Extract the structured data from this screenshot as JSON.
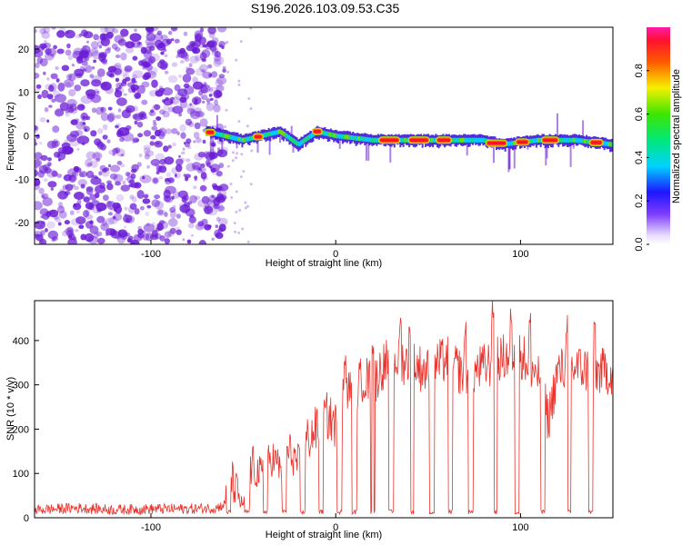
{
  "title": "S196.2026.103.09.53.C35",
  "colors": {
    "snr_line": "#e8322b",
    "scatter": "#6a1bd6",
    "axis": "#000000"
  },
  "chart_data": [
    {
      "type": "heatmap",
      "xlabel": "Height of straight line (km)",
      "ylabel": "Frequency (Hz)",
      "xlim": [
        -163,
        150
      ],
      "ylim": [
        -25,
        25
      ],
      "xticks": [
        -100,
        0,
        100
      ],
      "yticks": [
        -20,
        -10,
        0,
        10,
        20
      ],
      "colorbar": {
        "label": "Normalized spectral amplitude",
        "range": [
          0,
          1
        ],
        "ticks": [
          0.0,
          0.2,
          0.4,
          0.6,
          0.8
        ]
      },
      "noise_region_x": [
        -163,
        -60
      ],
      "signal_band_center_hz": [
        {
          "x": -70,
          "y": 1
        },
        {
          "x": -60,
          "y": 0
        },
        {
          "x": -50,
          "y": -1
        },
        {
          "x": -40,
          "y": 0
        },
        {
          "x": -30,
          "y": 1
        },
        {
          "x": -20,
          "y": -2
        },
        {
          "x": -10,
          "y": 1
        },
        {
          "x": 0,
          "y": 0
        },
        {
          "x": 20,
          "y": -1
        },
        {
          "x": 40,
          "y": -1
        },
        {
          "x": 60,
          "y": -1
        },
        {
          "x": 80,
          "y": -1
        },
        {
          "x": 90,
          "y": -2
        },
        {
          "x": 110,
          "y": -1
        },
        {
          "x": 130,
          "y": -1
        },
        {
          "x": 150,
          "y": -2
        }
      ],
      "high_amplitude_segments_x": [
        [
          -70,
          -66
        ],
        [
          -44,
          -40
        ],
        [
          -12,
          -8
        ],
        [
          24,
          34
        ],
        [
          40,
          50
        ],
        [
          55,
          62
        ],
        [
          82,
          92
        ],
        [
          98,
          104
        ],
        [
          112,
          120
        ],
        [
          138,
          144
        ]
      ]
    },
    {
      "type": "line",
      "xlabel": "Height of straight line (km)",
      "ylabel": "SNR (10 * v/v)",
      "xlim": [
        -163,
        150
      ],
      "ylim": [
        0,
        490
      ],
      "xticks": [
        -100,
        0,
        100
      ],
      "yticks": [
        0,
        100,
        200,
        300,
        400
      ],
      "series": [
        {
          "name": "SNR",
          "x": [
            -163,
            -140,
            -120,
            -100,
            -80,
            -65,
            -60,
            -57,
            -55,
            -50,
            -45,
            -40,
            -35,
            -30,
            -25,
            -20,
            -15,
            -10,
            -5,
            0,
            5,
            10,
            15,
            20,
            25,
            30,
            40,
            50,
            60,
            70,
            80,
            90,
            100,
            110,
            115,
            120,
            130,
            140,
            150
          ],
          "y": [
            18,
            22,
            18,
            20,
            20,
            22,
            30,
            100,
            70,
            30,
            120,
            90,
            140,
            110,
            150,
            120,
            180,
            200,
            230,
            210,
            290,
            280,
            320,
            300,
            340,
            360,
            350,
            330,
            360,
            320,
            340,
            360,
            370,
            320,
            220,
            330,
            340,
            330,
            330
          ]
        }
      ],
      "dropouts_x": [
        -58,
        -48,
        -38,
        -28,
        -18,
        -8,
        2,
        10,
        20,
        30,
        41,
        52,
        62,
        73,
        86,
        98,
        112,
        126,
        138
      ],
      "spikes": [
        {
          "x": 5,
          "y": 380
        },
        {
          "x": 20,
          "y": 410
        },
        {
          "x": 35,
          "y": 460
        },
        {
          "x": 40,
          "y": 450
        },
        {
          "x": 70,
          "y": 450
        },
        {
          "x": 85,
          "y": 490
        },
        {
          "x": 95,
          "y": 480
        },
        {
          "x": 105,
          "y": 470
        },
        {
          "x": 125,
          "y": 460
        },
        {
          "x": 140,
          "y": 450
        }
      ]
    }
  ]
}
